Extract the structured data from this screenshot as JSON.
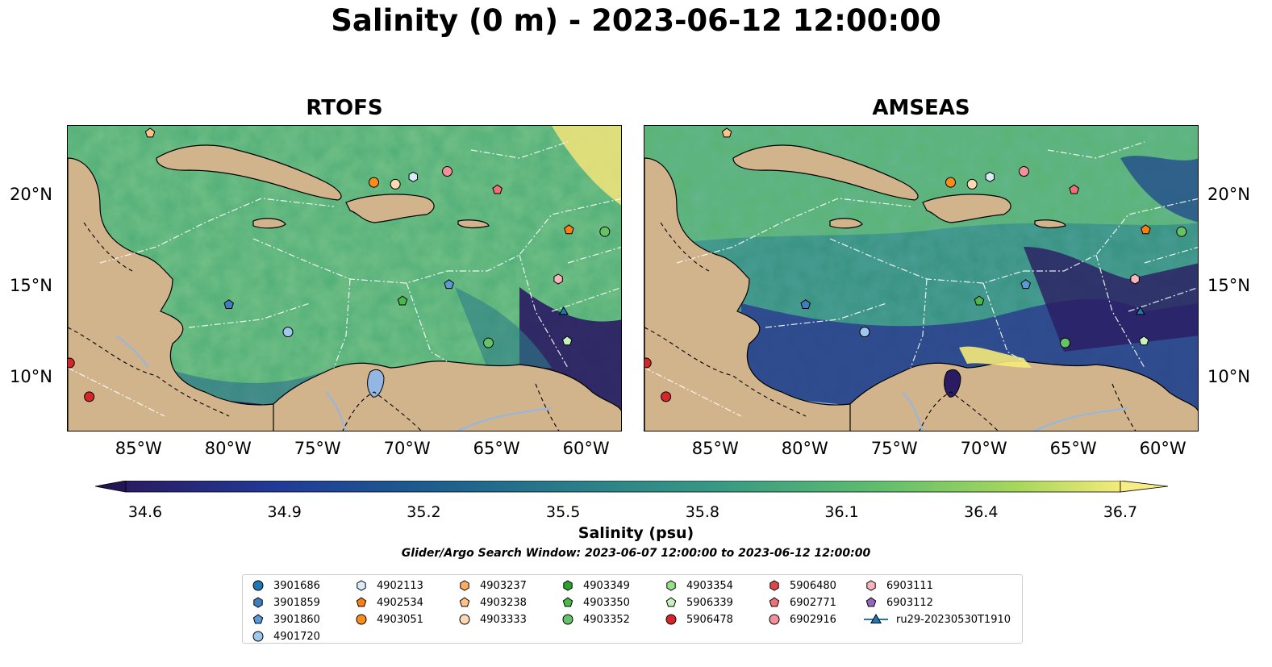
{
  "title": "Salinity (0 m) - 2023-06-12 12:00:00",
  "panels": [
    {
      "title": "RTOFS"
    },
    {
      "title": "AMSEAS"
    }
  ],
  "lon_ticks": [
    "85°W",
    "80°W",
    "75°W",
    "70°W",
    "65°W",
    "60°W"
  ],
  "lat_ticks": [
    "20°N",
    "15°N",
    "10°N"
  ],
  "extent": {
    "lon_min": -89,
    "lon_max": -58,
    "lat_min": 7,
    "lat_max": 23.8
  },
  "lon_tick_values": [
    -85,
    -80,
    -75,
    -70,
    -65,
    -60
  ],
  "lat_tick_values": [
    20,
    15,
    10
  ],
  "colorbar": {
    "ticks": [
      "34.6",
      "34.9",
      "35.2",
      "35.5",
      "35.8",
      "36.1",
      "36.4",
      "36.7"
    ],
    "min": 34.6,
    "max": 36.7,
    "label": "Salinity (psu)"
  },
  "search_window": "Glider/Argo Search Window: 2023-06-07 12:00:00 to 2023-06-12 12:00:00",
  "colors": {
    "land": "#d2b48c",
    "ocean_low": "#2a1b63",
    "ocean_mid": "#2e8a8a",
    "ocean_high": "#f4ea7a",
    "pacific_amseas": "#94b6e2"
  },
  "legend": [
    {
      "label": "3901686",
      "marker": "circle",
      "color": "#1f77b4"
    },
    {
      "label": "3901859",
      "marker": "hexagon",
      "color": "#3d7fbf"
    },
    {
      "label": "3901860",
      "marker": "pentagon",
      "color": "#5b9bd5"
    },
    {
      "label": "4901720",
      "marker": "circle",
      "color": "#9ec9ea"
    },
    {
      "label": "4902113",
      "marker": "hexagon",
      "color": "#d7ebfa"
    },
    {
      "label": "4902534",
      "marker": "pentagon",
      "color": "#ff7f0e"
    },
    {
      "label": "4903051",
      "marker": "circle",
      "color": "#ff8c1a"
    },
    {
      "label": "4903237",
      "marker": "hexagon",
      "color": "#ffad5c"
    },
    {
      "label": "4903238",
      "marker": "pentagon",
      "color": "#ffc38a"
    },
    {
      "label": "4903333",
      "marker": "circle",
      "color": "#ffd9b3"
    },
    {
      "label": "4903349",
      "marker": "hexagon",
      "color": "#2ca02c"
    },
    {
      "label": "4903350",
      "marker": "pentagon",
      "color": "#4cb84c"
    },
    {
      "label": "4903352",
      "marker": "circle",
      "color": "#66c266"
    },
    {
      "label": "4903354",
      "marker": "hexagon",
      "color": "#98df8a"
    },
    {
      "label": "5906339",
      "marker": "pentagon",
      "color": "#c7f2c0"
    },
    {
      "label": "5906478",
      "marker": "circle",
      "color": "#d62728"
    },
    {
      "label": "5906480",
      "marker": "hexagon",
      "color": "#e0474c"
    },
    {
      "label": "6902771",
      "marker": "pentagon",
      "color": "#f0707a"
    },
    {
      "label": "6902916",
      "marker": "circle",
      "color": "#f4909a"
    },
    {
      "label": "6903111",
      "marker": "hexagon",
      "color": "#f9b4bc"
    },
    {
      "label": "6903112",
      "marker": "pentagon",
      "color": "#9467bd"
    },
    {
      "label": "ru29-20230530T1910",
      "marker": "triangle-line",
      "color": "#1f77b4"
    }
  ],
  "floats": [
    {
      "lon": -84.4,
      "lat": 23.4,
      "marker": "pentagon",
      "color": "#ffc38a"
    },
    {
      "lon": -71.9,
      "lat": 20.7,
      "marker": "circle",
      "color": "#ff8c1a"
    },
    {
      "lon": -70.7,
      "lat": 20.6,
      "marker": "circle",
      "color": "#ffd9b3"
    },
    {
      "lon": -69.7,
      "lat": 21.0,
      "marker": "hexagon",
      "color": "#d7ebfa"
    },
    {
      "lon": -67.8,
      "lat": 21.3,
      "marker": "circle",
      "color": "#f4909a"
    },
    {
      "lon": -65.0,
      "lat": 20.3,
      "marker": "pentagon",
      "color": "#f0707a"
    },
    {
      "lon": -61.0,
      "lat": 18.1,
      "marker": "pentagon",
      "color": "#ff7f0e"
    },
    {
      "lon": -59.0,
      "lat": 18.0,
      "marker": "circle",
      "color": "#66c266"
    },
    {
      "lon": -67.7,
      "lat": 15.1,
      "marker": "pentagon",
      "color": "#5b9bd5"
    },
    {
      "lon": -61.6,
      "lat": 15.4,
      "marker": "hexagon",
      "color": "#f9b4bc"
    },
    {
      "lon": -70.3,
      "lat": 14.2,
      "marker": "pentagon",
      "color": "#4cb84c"
    },
    {
      "lon": -80.0,
      "lat": 14.0,
      "marker": "pentagon",
      "color": "#3d7fbf"
    },
    {
      "lon": -76.7,
      "lat": 12.5,
      "marker": "circle",
      "color": "#9ec9ea"
    },
    {
      "lon": -65.5,
      "lat": 11.9,
      "marker": "circle",
      "color": "#66c266"
    },
    {
      "lon": -61.1,
      "lat": 12.0,
      "marker": "pentagon",
      "color": "#c7f2c0"
    },
    {
      "lon": -61.3,
      "lat": 13.6,
      "marker": "triangle",
      "color": "#1f77b4"
    },
    {
      "lon": -88.9,
      "lat": 10.8,
      "marker": "circle",
      "color": "#d62728"
    },
    {
      "lon": -87.8,
      "lat": 8.95,
      "marker": "circle",
      "color": "#d62728"
    }
  ]
}
